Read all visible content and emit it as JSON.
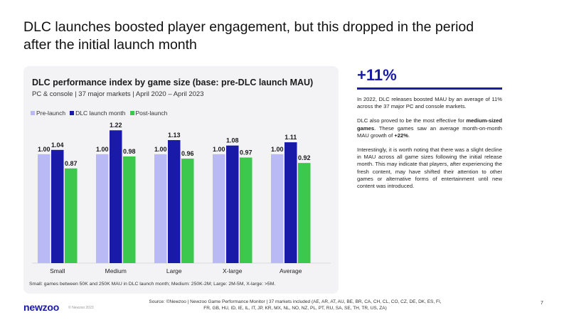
{
  "slide": {
    "title": "DLC launches boosted player engagement, but this dropped in the period after the initial launch month"
  },
  "chart_data": {
    "type": "bar",
    "title": "DLC performance index by game size (base: pre-DLC launch MAU)",
    "subtitle": "PC & console | 37 major markets | April 2020 – April 2023",
    "categories": [
      "Small",
      "Medium",
      "Large",
      "X-large",
      "Average"
    ],
    "series": [
      {
        "name": "Pre-launch",
        "color": "#b9b9f5",
        "values": [
          1.0,
          1.0,
          1.0,
          1.0,
          1.0
        ],
        "labels": [
          "1.00",
          "1.00",
          "1.00",
          "1.00",
          "1.00"
        ]
      },
      {
        "name": "DLC launch month",
        "color": "#1a1aa8",
        "values": [
          1.04,
          1.22,
          1.13,
          1.08,
          1.11
        ],
        "labels": [
          "1.04",
          "1.22",
          "1.13",
          "1.08",
          "1.11"
        ]
      },
      {
        "name": "Post-launch",
        "color": "#3cc84c",
        "values": [
          0.87,
          0.98,
          0.96,
          0.97,
          0.92
        ],
        "labels": [
          "0.87",
          "0.98",
          "0.96",
          "0.97",
          "0.92"
        ]
      }
    ],
    "ylim": [
      0,
      1.3
    ],
    "grid": false,
    "legend_position": "top-left",
    "footnote": "Small: games between 50K and 250K MAU in DLC launch month; Medium: 250K-2M; Large: 2M-5M, X-large: >5M."
  },
  "kpi": {
    "value": "+11%"
  },
  "commentary": {
    "p1": "In 2022, DLC releases boosted MAU by an average of 11% across the 37 major PC and console markets.",
    "p2_before": "DLC also proved to be the most effective for ",
    "p2_bold1": "medium-sized games",
    "p2_mid": ". These games saw an average month-on-month MAU growth of ",
    "p2_bold2": "+22%",
    "p2_after": ".",
    "p3": "Interestingly, it is worth noting that there was a slight decline in MAU across all game sizes following the initial release month. This may indicate that players, after experiencing the fresh content, may have shifted their attention to other games or alternative forms of entertainment until new content was introduced."
  },
  "footer": {
    "logo": "newzoo",
    "copyright": "© Newzoo 2023",
    "source": "Source: ©Newzoo | Newzoo Game Performance Monitor | 37 markets included (AE, AR, AT, AU, BE, BR, CA, CH, CL, CO, CZ, DE, DK, ES, FI, FR, GB, HU, ID, IE, IL, IT, JP, KR, MX, NL, NO, NZ, PL, PT, RU, SA, SE, TH, TR, US, ZA)",
    "page_number": "7"
  }
}
